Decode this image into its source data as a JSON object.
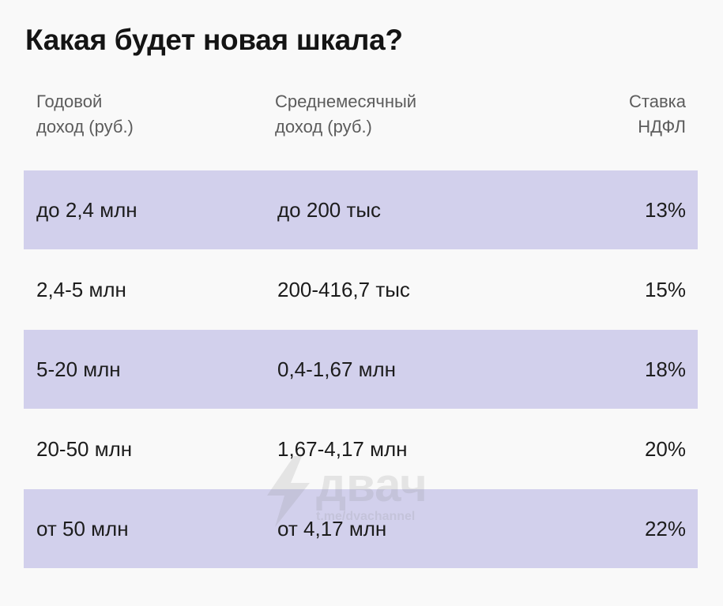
{
  "title": "Какая будет новая шкала?",
  "headers": {
    "annual": [
      "Годовой",
      "доход (руб.)"
    ],
    "monthly": [
      "Среднемесячный",
      "доход (руб.)"
    ],
    "rate": [
      "Ставка",
      "НДФЛ"
    ]
  },
  "rows": [
    {
      "annual": "до 2,4 млн",
      "monthly": "до 200 тыс",
      "rate": "13%"
    },
    {
      "annual": "2,4-5 млн",
      "monthly": "200-416,7 тыс",
      "rate": "15%"
    },
    {
      "annual": "5-20 млн",
      "monthly": "0,4-1,67 млн",
      "rate": "18%"
    },
    {
      "annual": "20-50 млн",
      "monthly": "1,67-4,17 млн",
      "rate": "20%"
    },
    {
      "annual": "от 50 млн",
      "monthly": "от 4,17 млн",
      "rate": "22%"
    }
  ],
  "watermark": {
    "logo": "двач",
    "subtitle": "t.me/dvachannel",
    "icon": "lightning-icon"
  },
  "colors": {
    "row_shade": "#d2d0ec",
    "background": "#f9f9f9",
    "header_text": "#5c5c5c",
    "body_text": "#1c1c1c"
  }
}
